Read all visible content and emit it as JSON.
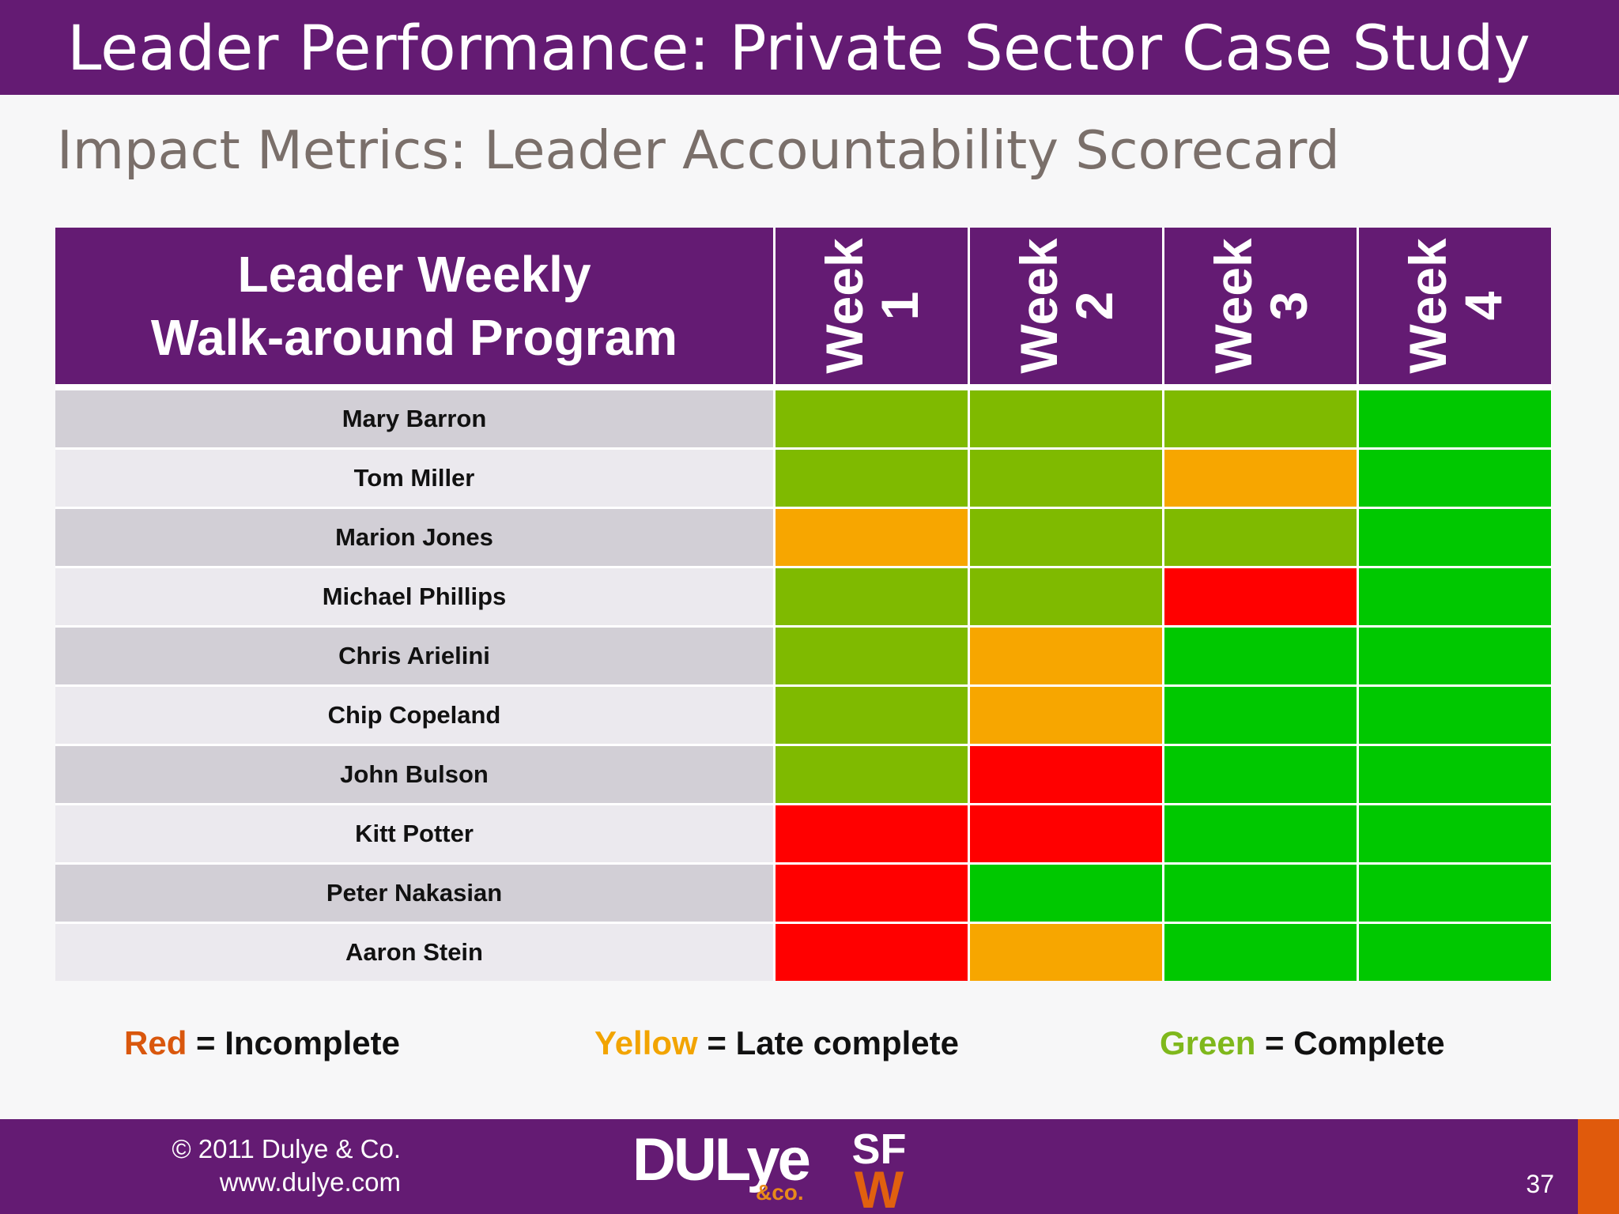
{
  "slide": {
    "title": "Leader Performance: Private Sector Case Study",
    "subtitle": "Impact Metrics: Leader Accountability Scorecard",
    "page_number": "37"
  },
  "colors": {
    "purple": "#641b73",
    "status_incomplete": "#ff0000",
    "status_late": "#f7a600",
    "status_complete_olive": "#7fba00",
    "status_complete_bright": "#00c800",
    "legend_red_text": "#d9570d",
    "legend_yellow_text": "#f2a400",
    "legend_green_text": "#7fb81c"
  },
  "table": {
    "header_line1": "Leader Weekly",
    "header_line2": "Walk-around Program",
    "weeks": [
      {
        "label": "Week",
        "number": "1"
      },
      {
        "label": "Week",
        "number": "2"
      },
      {
        "label": "Week",
        "number": "3"
      },
      {
        "label": "Week",
        "number": "4"
      }
    ],
    "rows": [
      {
        "name": "Mary Barron",
        "status": [
          "olive",
          "olive",
          "olive",
          "green"
        ]
      },
      {
        "name": "Tom Miller",
        "status": [
          "olive",
          "olive",
          "yellow",
          "green"
        ]
      },
      {
        "name": "Marion Jones",
        "status": [
          "yellow",
          "olive",
          "olive",
          "green"
        ]
      },
      {
        "name": "Michael Phillips",
        "status": [
          "olive",
          "olive",
          "red",
          "green"
        ]
      },
      {
        "name": "Chris Arielini",
        "status": [
          "olive",
          "yellow",
          "green",
          "green"
        ]
      },
      {
        "name": "Chip Copeland",
        "status": [
          "olive",
          "yellow",
          "green",
          "green"
        ]
      },
      {
        "name": "John Bulson",
        "status": [
          "olive",
          "red",
          "green",
          "green"
        ]
      },
      {
        "name": "Kitt Potter",
        "status": [
          "red",
          "red",
          "green",
          "green"
        ]
      },
      {
        "name": "Peter Nakasian",
        "status": [
          "red",
          "green",
          "green",
          "green"
        ]
      },
      {
        "name": "Aaron Stein",
        "status": [
          "red",
          "yellow",
          "green",
          "green"
        ]
      }
    ]
  },
  "legend": {
    "red_word": "Red",
    "red_meaning": " = Incomplete",
    "yellow_word": "Yellow",
    "yellow_meaning": " = Late complete",
    "green_word": "Green",
    "green_meaning": " = Complete"
  },
  "footer": {
    "copyright": "© 2011 Dulye & Co.",
    "website": "www.dulye.com",
    "logo_main": "DULye",
    "logo_sub": "&co.",
    "logo2_top": "SF",
    "logo2_bottom": "W"
  }
}
